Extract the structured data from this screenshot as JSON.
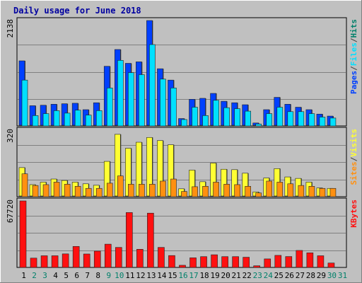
{
  "colors": {
    "background": "#C0C0C0",
    "frame": "#FFFFFF",
    "grid": "#808080",
    "title": "#0000A0",
    "pages": "#0040FF",
    "files": "#00E0FF",
    "hits": "#00806A",
    "visits": "#FFFF33",
    "sites": "#FF9010",
    "kbytes": "#FF1010",
    "weekday_label": "#000000",
    "weekend_label": "#00806A"
  },
  "chart_data": [
    {
      "type": "bar",
      "title": "Daily usage for June 2018",
      "ymax_label": "2138",
      "ylim": [
        0,
        2138
      ],
      "legend": [
        "Pages",
        "/",
        "Files",
        "/",
        "Hits"
      ],
      "legend_placement": "right",
      "grid": true,
      "categories": [
        "1",
        "2",
        "3",
        "4",
        "5",
        "6",
        "7",
        "8",
        "9",
        "10",
        "11",
        "12",
        "13",
        "14",
        "15",
        "16",
        "17",
        "18",
        "19",
        "20",
        "21",
        "22",
        "23",
        "24",
        "25",
        "26",
        "27",
        "28",
        "29",
        "30",
        "31"
      ],
      "weekend_days": [
        "2",
        "3",
        "9",
        "10",
        "16",
        "17",
        "23",
        "24",
        "30",
        "31"
      ],
      "series": [
        {
          "name": "Pages",
          "values": [
            1320,
            410,
            420,
            440,
            450,
            460,
            330,
            470,
            1210,
            1550,
            1270,
            1300,
            2138,
            1160,
            930,
            150,
            540,
            560,
            660,
            500,
            470,
            430,
            60,
            330,
            580,
            440,
            380,
            330,
            240,
            200,
            0
          ]
        },
        {
          "name": "Files",
          "values": [
            930,
            210,
            250,
            310,
            260,
            320,
            220,
            310,
            770,
            1330,
            1080,
            1040,
            1650,
            950,
            770,
            130,
            380,
            210,
            520,
            370,
            350,
            300,
            40,
            250,
            380,
            290,
            290,
            250,
            180,
            160,
            0
          ]
        }
      ]
    },
    {
      "type": "bar",
      "ymax_label": "320",
      "ylim": [
        0,
        320
      ],
      "legend": [
        "Sites",
        "/",
        "Visits"
      ],
      "legend_placement": "right",
      "grid": true,
      "categories": [
        "1",
        "2",
        "3",
        "4",
        "5",
        "6",
        "7",
        "8",
        "9",
        "10",
        "11",
        "12",
        "13",
        "14",
        "15",
        "16",
        "17",
        "18",
        "19",
        "20",
        "21",
        "22",
        "23",
        "24",
        "25",
        "26",
        "27",
        "28",
        "29",
        "30",
        "31"
      ],
      "series": [
        {
          "name": "Visits",
          "values": [
            140,
            58,
            70,
            85,
            78,
            70,
            62,
            55,
            170,
            300,
            233,
            262,
            285,
            270,
            250,
            38,
            128,
            72,
            162,
            132,
            130,
            113,
            23,
            90,
            135,
            95,
            88,
            70,
            42,
            40,
            0
          ]
        },
        {
          "name": "Sites",
          "values": [
            110,
            54,
            58,
            70,
            60,
            50,
            40,
            40,
            65,
            100,
            60,
            60,
            60,
            75,
            85,
            25,
            48,
            50,
            70,
            60,
            58,
            50,
            18,
            75,
            70,
            62,
            54,
            50,
            40,
            40,
            0
          ]
        }
      ]
    },
    {
      "type": "bar",
      "ymax_label": "67720",
      "ylim": [
        0,
        67720
      ],
      "legend": [
        "KBytes"
      ],
      "legend_placement": "right",
      "grid": true,
      "categories": [
        "1",
        "2",
        "3",
        "4",
        "5",
        "6",
        "7",
        "8",
        "9",
        "10",
        "11",
        "12",
        "13",
        "14",
        "15",
        "16",
        "17",
        "18",
        "19",
        "20",
        "21",
        "22",
        "23",
        "24",
        "25",
        "26",
        "27",
        "28",
        "29",
        "30",
        "31"
      ],
      "series": [
        {
          "name": "KBytes",
          "values": [
            67720,
            9500,
            11900,
            11900,
            13800,
            21400,
            13700,
            16600,
            23700,
            20400,
            55900,
            18500,
            55300,
            20400,
            12100,
            2200,
            9800,
            11000,
            12900,
            11000,
            11000,
            10400,
            1700,
            8700,
            12300,
            11100,
            17300,
            14900,
            11900,
            4500,
            0
          ]
        }
      ]
    }
  ]
}
